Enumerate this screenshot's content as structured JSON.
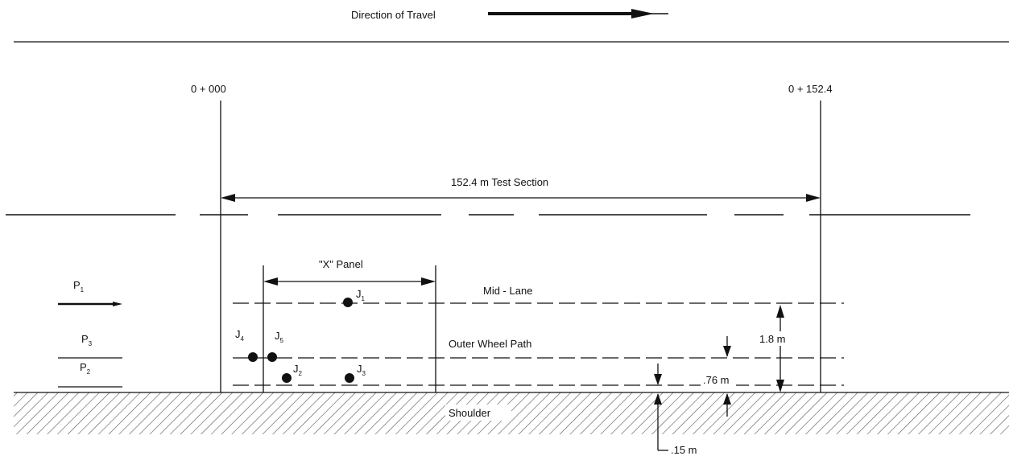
{
  "direction_label": "Direction of Travel",
  "station_start": "0 + 000",
  "station_end": "0 + 152.4",
  "section_label": "152.4 m Test Section",
  "panel_label": "\"X\" Panel",
  "mid_lane_label": "Mid - Lane",
  "outer_wheel_path_label": "Outer Wheel Path",
  "shoulder_label": "Shoulder",
  "dim_1_8": "1.8 m",
  "dim_76": ".76 m",
  "dim_15": ".15 m",
  "points": [
    {
      "letter": "P",
      "sub": "1"
    },
    {
      "letter": "P",
      "sub": "3"
    },
    {
      "letter": "P",
      "sub": "2"
    }
  ],
  "joints": [
    {
      "letter": "J",
      "sub": "1"
    },
    {
      "letter": "J",
      "sub": "4"
    },
    {
      "letter": "J",
      "sub": "5"
    },
    {
      "letter": "J",
      "sub": "2"
    },
    {
      "letter": "J",
      "sub": "3"
    }
  ]
}
